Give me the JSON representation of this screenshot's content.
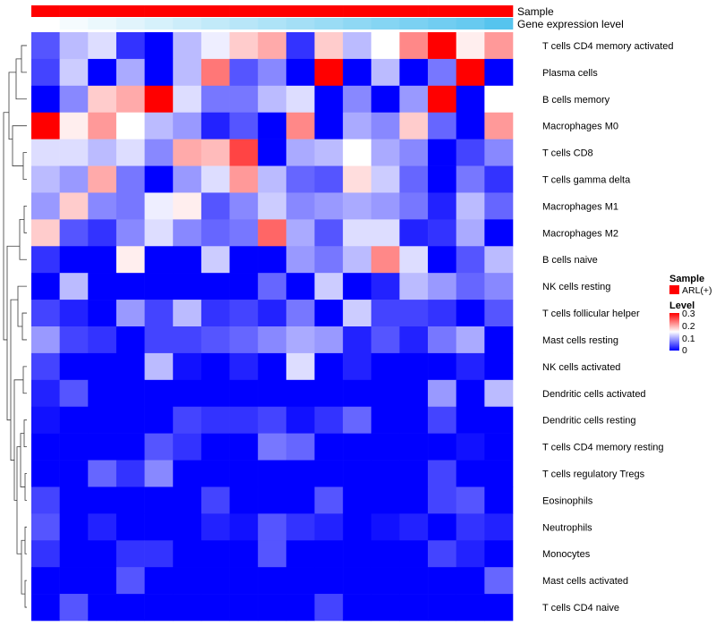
{
  "chart_data": {
    "type": "heatmap",
    "title": "",
    "columns_count": 17,
    "annotation_tracks": [
      {
        "name": "Sample",
        "kind": "categorical",
        "color": "#ff0000"
      },
      {
        "name": "Gene expression level",
        "kind": "gradient",
        "from_color": "#ffffff",
        "to_color": "#56c4ee"
      }
    ],
    "rows": [
      "T cells CD4 memory activated",
      "Plasma cells",
      "B cells memory",
      "Macrophages M0",
      "T cells CD8",
      "T cells gamma delta",
      "Macrophages M1",
      "Macrophages M2",
      "B cells naive",
      "NK cells resting",
      "T cells follicular helper",
      "Mast cells resting",
      "NK cells activated",
      "Dendritic cells activated",
      "Dendritic cells resting",
      "T cells CD4 memory resting",
      "T cells regulatory  Tregs",
      "Eosinophils",
      "Neutrophils",
      "Monocytes",
      "Mast cells activated",
      "T cells CD4 naive"
    ],
    "values": [
      [
        0.05,
        0.11,
        0.13,
        0.03,
        0.0,
        0.11,
        0.14,
        0.18,
        0.2,
        0.03,
        0.18,
        0.11,
        0.15,
        0.22,
        0.3,
        0.16,
        0.21
      ],
      [
        0.04,
        0.12,
        0.0,
        0.1,
        0.0,
        0.11,
        0.23,
        0.05,
        0.08,
        0.0,
        0.3,
        0.0,
        0.11,
        0.0,
        0.07,
        0.3,
        0.0
      ],
      [
        0.0,
        0.08,
        0.18,
        0.2,
        0.3,
        0.13,
        0.07,
        0.07,
        0.11,
        0.13,
        0.0,
        0.08,
        0.0,
        0.09,
        0.3,
        0.0,
        0.15
      ],
      [
        0.3,
        0.16,
        0.21,
        0.15,
        0.11,
        0.09,
        0.02,
        0.05,
        0.0,
        0.22,
        0.0,
        0.1,
        0.08,
        0.18,
        0.06,
        0.0,
        0.21
      ],
      [
        0.13,
        0.13,
        0.11,
        0.13,
        0.08,
        0.2,
        0.19,
        0.26,
        0.0,
        0.1,
        0.11,
        0.15,
        0.1,
        0.08,
        0.0,
        0.04,
        0.08
      ],
      [
        0.11,
        0.09,
        0.2,
        0.07,
        0.0,
        0.09,
        0.13,
        0.21,
        0.11,
        0.06,
        0.05,
        0.17,
        0.12,
        0.06,
        0.0,
        0.07,
        0.03
      ],
      [
        0.09,
        0.18,
        0.08,
        0.07,
        0.14,
        0.16,
        0.05,
        0.08,
        0.12,
        0.08,
        0.09,
        0.1,
        0.09,
        0.07,
        0.02,
        0.11,
        0.06
      ],
      [
        0.18,
        0.05,
        0.03,
        0.08,
        0.13,
        0.08,
        0.06,
        0.07,
        0.24,
        0.1,
        0.05,
        0.13,
        0.13,
        0.02,
        0.03,
        0.1,
        0.0
      ],
      [
        0.03,
        0.0,
        0.0,
        0.16,
        0.0,
        0.0,
        0.12,
        0.0,
        0.0,
        0.09,
        0.07,
        0.11,
        0.22,
        0.13,
        0.0,
        0.05,
        0.11
      ],
      [
        0.0,
        0.11,
        0.0,
        0.0,
        0.0,
        0.0,
        0.0,
        0.0,
        0.06,
        0.0,
        0.12,
        0.0,
        0.02,
        0.11,
        0.09,
        0.06,
        0.08
      ],
      [
        0.04,
        0.02,
        0.0,
        0.09,
        0.04,
        0.11,
        0.03,
        0.04,
        0.02,
        0.07,
        0.0,
        0.12,
        0.04,
        0.04,
        0.03,
        0.0,
        0.05
      ],
      [
        0.09,
        0.04,
        0.03,
        0.0,
        0.04,
        0.04,
        0.05,
        0.06,
        0.08,
        0.1,
        0.09,
        0.02,
        0.05,
        0.02,
        0.07,
        0.1,
        0.0
      ],
      [
        0.04,
        0.0,
        0.0,
        0.0,
        0.11,
        0.01,
        0.0,
        0.02,
        0.0,
        0.13,
        0.0,
        0.02,
        0.0,
        0.0,
        0.0,
        0.02,
        0.0
      ],
      [
        0.02,
        0.05,
        0.0,
        0.0,
        0.0,
        0.0,
        0.0,
        0.0,
        0.0,
        0.0,
        0.0,
        0.0,
        0.0,
        0.0,
        0.09,
        0.0,
        0.11
      ],
      [
        0.01,
        0.0,
        0.0,
        0.0,
        0.0,
        0.04,
        0.03,
        0.03,
        0.04,
        0.01,
        0.03,
        0.06,
        0.0,
        0.0,
        0.04,
        0.0,
        0.0
      ],
      [
        0.0,
        0.0,
        0.0,
        0.0,
        0.05,
        0.03,
        0.0,
        0.0,
        0.07,
        0.06,
        0.0,
        0.0,
        0.0,
        0.0,
        0.0,
        0.01,
        0.0
      ],
      [
        0.0,
        0.0,
        0.06,
        0.03,
        0.08,
        0.0,
        0.0,
        0.0,
        0.0,
        0.0,
        0.0,
        0.0,
        0.0,
        0.0,
        0.04,
        0.0,
        0.0
      ],
      [
        0.04,
        0.0,
        0.0,
        0.0,
        0.0,
        0.0,
        0.04,
        0.0,
        0.0,
        0.0,
        0.05,
        0.0,
        0.0,
        0.0,
        0.04,
        0.05,
        0.0
      ],
      [
        0.05,
        0.0,
        0.02,
        0.0,
        0.0,
        0.0,
        0.02,
        0.01,
        0.05,
        0.03,
        0.02,
        0.0,
        0.01,
        0.02,
        0.0,
        0.03,
        0.02
      ],
      [
        0.03,
        0.0,
        0.0,
        0.03,
        0.03,
        0.0,
        0.0,
        0.0,
        0.05,
        0.0,
        0.0,
        0.0,
        0.0,
        0.0,
        0.04,
        0.02,
        0.0
      ],
      [
        0.0,
        0.0,
        0.0,
        0.05,
        0.0,
        0.0,
        0.0,
        0.0,
        0.0,
        0.0,
        0.0,
        0.0,
        0.0,
        0.0,
        0.0,
        0.0,
        0.06
      ],
      [
        0.0,
        0.05,
        0.0,
        0.0,
        0.0,
        0.0,
        0.0,
        0.0,
        0.0,
        0.0,
        0.04,
        0.0,
        0.0,
        0.0,
        0.0,
        0.0,
        0.0
      ]
    ],
    "color_scale": {
      "min": 0,
      "max": 0.3,
      "low": "#0000ff",
      "mid": "#ffffff",
      "high": "#ff0000",
      "mid_value": 0.15
    },
    "legend": {
      "position": "right",
      "sample": {
        "title": "Sample",
        "items": [
          {
            "label": "ARL(+)",
            "color": "#ff0000"
          }
        ]
      },
      "level": {
        "title": "Level",
        "ticks": [
          "0.3",
          "0.2",
          "0.1",
          "0"
        ]
      }
    },
    "dendrogram": "row",
    "gene_expression_gradient": [
      0.0,
      0.06,
      0.12,
      0.18,
      0.24,
      0.3,
      0.36,
      0.42,
      0.48,
      0.54,
      0.6,
      0.66,
      0.72,
      0.78,
      0.84,
      0.9,
      1.0
    ]
  }
}
